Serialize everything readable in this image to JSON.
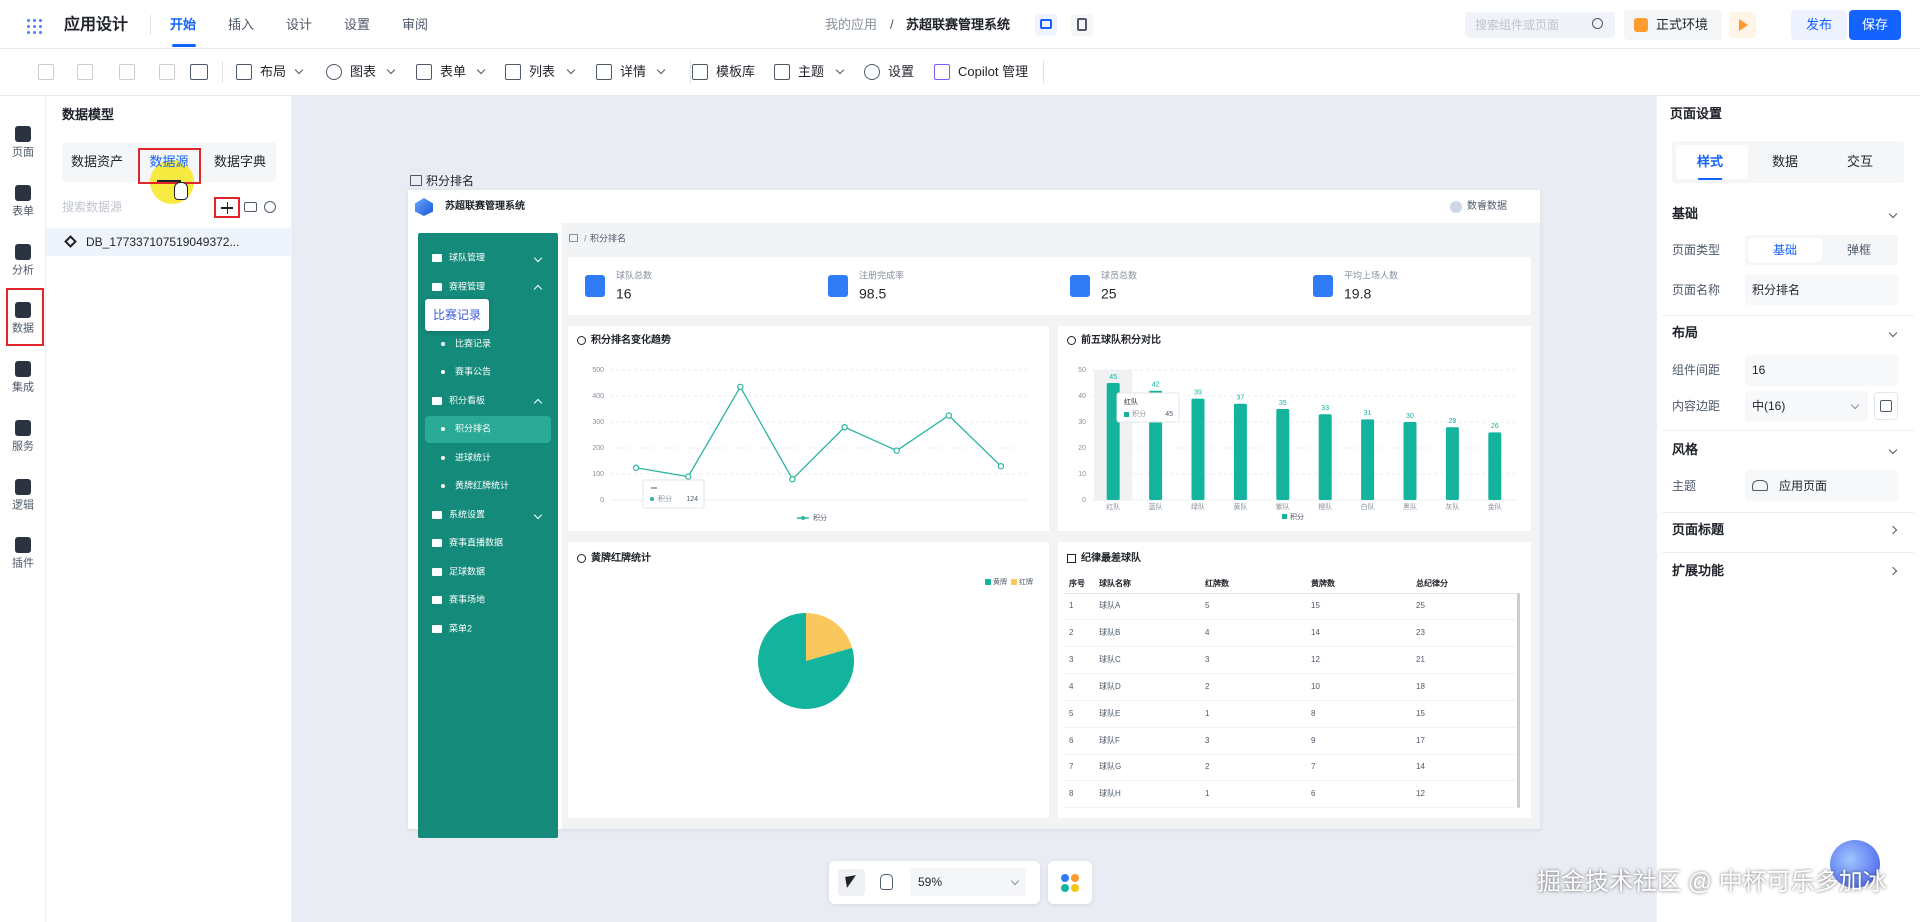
{
  "top_bar": {
    "app_title": "应用设计",
    "tabs": [
      "开始",
      "插入",
      "设计",
      "设置",
      "审阅"
    ],
    "breadcrumb": "我的应用",
    "separator": "/",
    "app_name": "苏超联赛管理系统",
    "search_placeholder": "搜索组件或页面",
    "environment": "正式环境",
    "publish": "发布",
    "save": "保存"
  },
  "toolbar": {
    "items": [
      "布局",
      "图表",
      "表单",
      "列表",
      "详情",
      "模板库",
      "主题",
      "设置",
      "Copilot 管理"
    ]
  },
  "left_rail": {
    "items": [
      "页面",
      "表单",
      "分析",
      "数据",
      "集成",
      "服务",
      "逻辑",
      "插件"
    ]
  },
  "data_panel": {
    "title": "数据模型",
    "tabs": [
      "数据资产",
      "数据源",
      "数据字典"
    ],
    "search_placeholder": "搜索数据源",
    "items": [
      "DB_177337107519049372..."
    ]
  },
  "canvas": {
    "page_label": "积分排名",
    "zoom": "59%"
  },
  "preview": {
    "title": "苏超联赛管理系统",
    "user": "数睿数据",
    "tooltip": "比赛记录",
    "menu": [
      {
        "label": "球队管理",
        "collapsed": true
      },
      {
        "label": "赛程管理",
        "children": [
          "比赛记录",
          "赛事公告"
        ]
      },
      {
        "label": "积分看板",
        "children": [
          "积分排名",
          "进球统计",
          "黄牌红牌统计"
        ]
      },
      {
        "label": "系统设置",
        "collapsed": true
      },
      {
        "label": "赛事直播数据"
      },
      {
        "label": "足球数据"
      },
      {
        "label": "赛事场地"
      },
      {
        "label": "菜单2"
      }
    ],
    "breadcrumb_separator": "/",
    "breadcrumb": "积分排名",
    "stats": [
      {
        "label": "球队总数",
        "value": "16"
      },
      {
        "label": "注册完成率",
        "value": "98.5"
      },
      {
        "label": "球员总数",
        "value": "25"
      },
      {
        "label": "平均上场人数",
        "value": "19.8"
      }
    ]
  },
  "chart_data": [
    {
      "type": "line",
      "title": "积分排名变化趋势",
      "series": [
        {
          "name": "积分",
          "color": "#2bb5a0",
          "values": [
            124,
            90,
            435,
            80,
            280,
            190,
            325,
            130
          ]
        }
      ],
      "ylim": [
        0,
        500
      ],
      "yticks": [
        0,
        100,
        200,
        300,
        400,
        500
      ],
      "grid": true
    },
    {
      "type": "bar",
      "title": "前五球队积分对比",
      "categories": [
        "红队",
        "蓝队",
        "绿队",
        "黄队",
        "紫队",
        "橙队",
        "白队",
        "黑队",
        "灰队",
        "金队"
      ],
      "series": [
        {
          "name": "积分",
          "color": "#14b39e",
          "values": [
            45,
            42,
            39,
            37,
            35,
            33,
            31,
            30,
            28,
            26
          ]
        }
      ],
      "ylim": [
        0,
        50
      ],
      "yticks": [
        0,
        10,
        20,
        30,
        40,
        50
      ],
      "grid": true
    },
    {
      "type": "pie",
      "title": "黄牌红牌统计",
      "categories": [
        "黄牌",
        "红牌"
      ],
      "values": [
        81,
        21
      ],
      "colors": [
        "#14b39e",
        "#f9c75c"
      ]
    }
  ],
  "table": {
    "title": "纪律最差球队",
    "headers": [
      "序号",
      "球队名称",
      "红牌数",
      "黄牌数",
      "总纪律分"
    ],
    "rows": [
      [
        1,
        "球队A",
        5,
        15,
        25
      ],
      [
        2,
        "球队B",
        4,
        14,
        23
      ],
      [
        3,
        "球队C",
        3,
        12,
        21
      ],
      [
        4,
        "球队D",
        2,
        10,
        18
      ],
      [
        5,
        "球队E",
        1,
        8,
        15
      ],
      [
        6,
        "球队F",
        3,
        9,
        17
      ],
      [
        7,
        "球队G",
        2,
        7,
        14
      ],
      [
        8,
        "球队H",
        1,
        6,
        12
      ]
    ]
  },
  "right_panel": {
    "title": "页面设置",
    "tabs": [
      "样式",
      "数据",
      "交互"
    ],
    "basic": {
      "title": "基础",
      "page_type_label": "页面类型",
      "page_type_options": [
        "基础",
        "弹框"
      ],
      "page_name_label": "页面名称",
      "page_name": "积分排名"
    },
    "layout": {
      "title": "布局",
      "gap_label": "组件间距",
      "gap": "16",
      "padding_label": "内容边距",
      "padding": "中(16)"
    },
    "style": {
      "title": "风格",
      "theme_label": "主题",
      "theme": "应用页面"
    },
    "collapsed": [
      "页面标题",
      "扩展功能"
    ]
  },
  "watermark": "掘金技术社区 @ 中杯可乐多加冰"
}
